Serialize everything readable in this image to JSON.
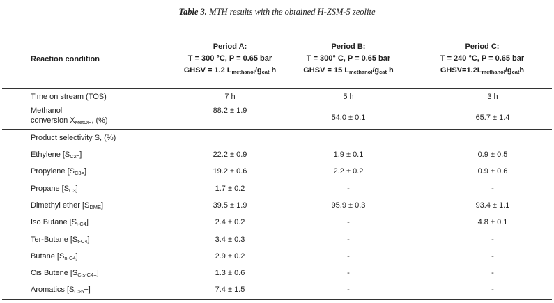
{
  "caption": {
    "label": "Table 3.",
    "text": "MTH results with the obtained H-ZSM-5 zeolite"
  },
  "header": {
    "condition_label": "Reaction condition",
    "periods": [
      {
        "name": "Period A:",
        "line1": "T = 300 °C, P = 0.65 bar",
        "ghsv_prefix": "GHSV = 1.2 L",
        "ghsv_sub1": "methanol",
        "ghsv_mid": "/g",
        "ghsv_sub2": "cat",
        "ghsv_suffix": " h"
      },
      {
        "name": "Period B:",
        "line1": "T = 300° C, P = 0.65 bar",
        "ghsv_prefix": "GHSV = 15 L",
        "ghsv_sub1": "methanol",
        "ghsv_mid": "/g",
        "ghsv_sub2": "cat",
        "ghsv_suffix": " h"
      },
      {
        "name": "Period C:",
        "line1": "T = 240 °C, P = 0.65 bar",
        "ghsv_prefix": "GHSV=1.2L",
        "ghsv_sub1": "methanol",
        "ghsv_mid": "/g",
        "ghsv_sub2": "cat",
        "ghsv_suffix": "h"
      }
    ]
  },
  "tos": {
    "label": "Time on stream (TOS)",
    "values": [
      "7 h",
      "5 h",
      "3 h"
    ]
  },
  "conversion": {
    "label_line1": "Methanol",
    "label_line2": "conversion  X",
    "label_sub": "MetOH",
    "label_suffix": ", (%)",
    "values": [
      "88.2 ± 1.9",
      "54.0 ± 0.1",
      "65.7 ± 1.4"
    ]
  },
  "selectivity_header": "Product selectivity S, (%)",
  "rows": [
    {
      "name": "Ethylene [S",
      "sub": "C2",
      "sup": "=",
      "close": "]",
      "values": [
        "22.2 ± 0.9",
        "1.9 ± 0.1",
        "0.9 ± 0.5"
      ]
    },
    {
      "name": "Propylene [S",
      "sub": "C3",
      "sup": "=",
      "close": "]",
      "values": [
        "19.2 ± 0.6",
        "2.2 ± 0.2",
        "0.9 ± 0.6"
      ]
    },
    {
      "name": "Propane [S",
      "sub": "C3",
      "sup": "",
      "close": "]",
      "values": [
        "1.7 ± 0.2",
        "-",
        "-"
      ]
    },
    {
      "name": "Dimethyl ether [S",
      "sub": "DME",
      "sup": "",
      "close": "]",
      "values": [
        "39.5 ± 1.9",
        "95.9 ± 0.3",
        "93.4 ± 1.1"
      ]
    },
    {
      "name": "Iso Butane [S",
      "sub": "i-C4",
      "sup": "",
      "close": "]",
      "values": [
        "2.4 ± 0.2",
        "-",
        "4.8 ± 0.1"
      ]
    },
    {
      "name": "Ter-Butane [S",
      "sub": "t-C4",
      "sup": "",
      "close": "]",
      "values": [
        "3.4 ± 0.3",
        "-",
        "-"
      ]
    },
    {
      "name": "Butane [S",
      "sub": "n-C4",
      "sup": "",
      "close": "]",
      "values": [
        "2.9 ± 0.2",
        "-",
        "-"
      ]
    },
    {
      "name": "Cis Butene [S",
      "sub": "Cis-C4",
      "sup": "=",
      "close": "]",
      "values": [
        "1.3 ± 0.6",
        "-",
        "-"
      ]
    },
    {
      "name": "Aromatics [S",
      "sub": "C>5",
      "sup": "",
      "close": "+]",
      "values": [
        "7.4 ± 1.5",
        "-",
        "-"
      ]
    }
  ]
}
